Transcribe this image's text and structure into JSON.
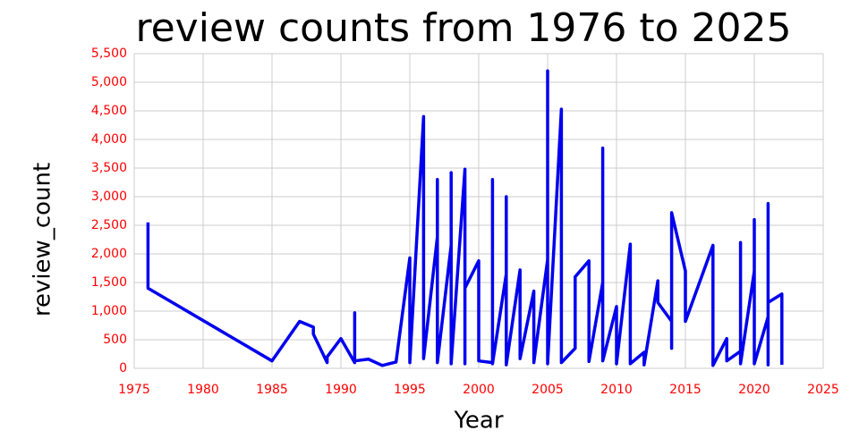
{
  "chart_data": {
    "type": "line",
    "title": "review counts from 1976 to 2025",
    "x_label": "Year",
    "y_label": "review_count",
    "grid": true,
    "xlim": [
      1975,
      2025
    ],
    "xticks": [
      1975,
      1980,
      1985,
      1990,
      1995,
      2000,
      2005,
      2010,
      2015,
      2020,
      2025
    ],
    "ylim": [
      0,
      5500
    ],
    "yticks": [
      0,
      {
        "value": 500,
        "label": "500"
      },
      {
        "value": 1000,
        "label": "1,000"
      },
      {
        "value": 1500,
        "label": "1,500"
      },
      {
        "value": 2000,
        "label": "2,000"
      },
      {
        "value": 2500,
        "label": "2,500"
      },
      {
        "value": 3000,
        "label": "3,000"
      },
      {
        "value": 3500,
        "label": "3,500"
      },
      {
        "value": 4000,
        "label": "4,000"
      },
      {
        "value": 4500,
        "label": "4,500"
      },
      {
        "value": 5000,
        "label": "5,000"
      },
      {
        "value": 5500,
        "label": "5,500"
      }
    ],
    "series": [
      {
        "name": "review_count",
        "color": "#0000ee",
        "x": [
          1976,
          1976,
          1985,
          1987,
          1988,
          1988,
          1989,
          1989,
          1990,
          1991,
          1991,
          1991,
          1992,
          1993,
          1994,
          1995,
          1995,
          1996,
          1996,
          1997,
          1997,
          1997,
          1998,
          1998,
          1998,
          1999,
          1999,
          1999,
          2000,
          2000,
          2001,
          2001,
          2001,
          2002,
          2002,
          2002,
          2003,
          2003,
          2004,
          2004,
          2005,
          2005,
          2005,
          2006,
          2006,
          2007,
          2007,
          2008,
          2008,
          2009,
          2009,
          2009,
          2010,
          2010,
          2011,
          2011,
          2012,
          2012,
          2013,
          2013,
          2014,
          2014,
          2014,
          2015,
          2015,
          2017,
          2017,
          2018,
          2018,
          2019,
          2019,
          2019,
          2020,
          2020,
          2020,
          2021,
          2021,
          2021,
          2021,
          2022,
          2022
        ],
        "values": [
          2550,
          1400,
          130,
          820,
          720,
          600,
          100,
          200,
          520,
          100,
          970,
          130,
          160,
          50,
          110,
          1930,
          100,
          4400,
          170,
          2300,
          3300,
          100,
          2150,
          3420,
          80,
          3480,
          80,
          1400,
          1880,
          130,
          100,
          3300,
          80,
          1650,
          3000,
          60,
          1720,
          170,
          1350,
          100,
          1900,
          5200,
          80,
          4530,
          100,
          350,
          1600,
          1880,
          120,
          1500,
          3850,
          130,
          1080,
          80,
          2170,
          80,
          280,
          60,
          1530,
          1150,
          820,
          350,
          2720,
          1700,
          820,
          2150,
          50,
          520,
          130,
          300,
          2200,
          80,
          1700,
          2600,
          80,
          900,
          2880,
          60,
          1150,
          1300,
          60
        ]
      }
    ]
  }
}
